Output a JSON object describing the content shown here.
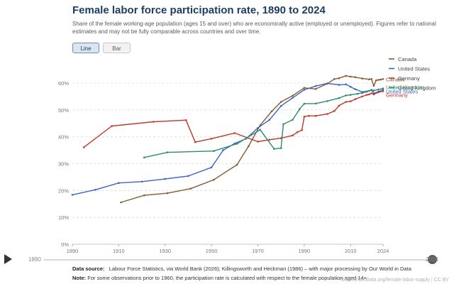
{
  "header": {
    "title": "Female labor force participation rate, 1890 to 2024",
    "subtitle": "Share of the female working-age population (ages 15 and over) who are economically active (employed or unemployed). Figures refer to national estimates and may not be fully comparable across countries and over time."
  },
  "controls": {
    "line_label": "Line",
    "bar_label": "Bar",
    "active": "Line"
  },
  "timeline": {
    "start_label": "1890",
    "end_label": "2024",
    "progress": 1.0
  },
  "footer": {
    "source_label": "Data source:",
    "source_text": "Labour Force Statistics, via World Bank (2026); Killingsworth and Heckman (1986) – with major processing by Our World in Data",
    "note_label": "Note:",
    "note_text": "For some observations prior to 1960, the participation rate is calculated with respect to the female population aged 14+.",
    "credit": "OurWorldInData.org/female-labor-supply | CC BY"
  },
  "chart_data": {
    "type": "line",
    "title": "Female labor force participation rate, 1890 to 2024",
    "xlim": [
      1890,
      2024
    ],
    "ylim": [
      0,
      60
    ],
    "x_ticks": [
      1890,
      1910,
      1930,
      1950,
      1970,
      1990,
      2010,
      2024
    ],
    "y_ticks": [
      0,
      10,
      20,
      30,
      40,
      50,
      60
    ],
    "y_tick_labels": [
      "0%",
      "10%",
      "20%",
      "30%",
      "40%",
      "50%",
      "60%"
    ],
    "grid": "horizontal-dashed",
    "legend": "top-right",
    "series": [
      {
        "name": "Canada",
        "color": "#8c5a2e",
        "points": [
          [
            1911,
            15.6
          ],
          [
            1921,
            18.2
          ],
          [
            1931,
            19.0
          ],
          [
            1941,
            20.7
          ],
          [
            1951,
            24.0
          ],
          [
            1961,
            29.6
          ],
          [
            1966,
            36.5
          ],
          [
            1971,
            44.3
          ],
          [
            1976,
            49.5
          ],
          [
            1980,
            53.0
          ],
          [
            1985,
            55.3
          ],
          [
            1990,
            58.2
          ],
          [
            1995,
            57.8
          ],
          [
            2000,
            59.8
          ],
          [
            2003,
            61.5
          ],
          [
            2005,
            61.8
          ],
          [
            2008,
            62.7
          ],
          [
            2010,
            62.4
          ],
          [
            2012,
            62.2
          ],
          [
            2015,
            61.7
          ],
          [
            2018,
            61.4
          ],
          [
            2019,
            61.5
          ],
          [
            2020,
            59.0
          ],
          [
            2021,
            61.0
          ],
          [
            2022,
            61.2
          ],
          [
            2023,
            61.3
          ],
          [
            2024,
            61.5
          ]
        ]
      },
      {
        "name": "United States",
        "color": "#3b65c0",
        "points": [
          [
            1890,
            18.4
          ],
          [
            1900,
            20.3
          ],
          [
            1910,
            22.8
          ],
          [
            1920,
            23.3
          ],
          [
            1930,
            24.3
          ],
          [
            1940,
            25.4
          ],
          [
            1950,
            28.6
          ],
          [
            1955,
            35.0
          ],
          [
            1960,
            37.5
          ],
          [
            1965,
            39.3
          ],
          [
            1970,
            43.3
          ],
          [
            1975,
            46.3
          ],
          [
            1980,
            51.5
          ],
          [
            1985,
            54.5
          ],
          [
            1990,
            57.5
          ],
          [
            1995,
            58.9
          ],
          [
            2000,
            59.9
          ],
          [
            2005,
            59.3
          ],
          [
            2008,
            59.5
          ],
          [
            2010,
            58.6
          ],
          [
            2012,
            57.7
          ],
          [
            2015,
            56.7
          ],
          [
            2018,
            57.1
          ],
          [
            2019,
            57.4
          ],
          [
            2020,
            56.2
          ],
          [
            2022,
            56.8
          ],
          [
            2024,
            57.5
          ]
        ]
      },
      {
        "name": "Germany",
        "color": "#c0392b",
        "points": [
          [
            1895,
            36.1
          ],
          [
            1907,
            44.0
          ],
          [
            1925,
            45.6
          ],
          [
            1939,
            46.2
          ],
          [
            1943,
            38.0
          ],
          [
            1950,
            39.3
          ],
          [
            1960,
            41.4
          ],
          [
            1970,
            38.2
          ],
          [
            1975,
            38.9
          ],
          [
            1980,
            39.5
          ],
          [
            1985,
            40.5
          ],
          [
            1987,
            41.7
          ],
          [
            1989,
            42.5
          ],
          [
            1990,
            47.5
          ],
          [
            1992,
            47.8
          ],
          [
            1995,
            47.8
          ],
          [
            2000,
            48.5
          ],
          [
            2003,
            49.6
          ],
          [
            2005,
            51.6
          ],
          [
            2008,
            53.0
          ],
          [
            2010,
            53.2
          ],
          [
            2012,
            54.0
          ],
          [
            2015,
            55.0
          ],
          [
            2017,
            55.6
          ],
          [
            2018,
            55.8
          ],
          [
            2019,
            56.2
          ],
          [
            2020,
            55.8
          ],
          [
            2022,
            56.6
          ],
          [
            2024,
            57.0
          ]
        ]
      },
      {
        "name": "United Kingdom",
        "color": "#2e8b6a",
        "points": [
          [
            1921,
            32.3
          ],
          [
            1931,
            34.2
          ],
          [
            1951,
            34.7
          ],
          [
            1961,
            37.4
          ],
          [
            1971,
            42.6
          ],
          [
            1977,
            35.5
          ],
          [
            1980,
            35.8
          ],
          [
            1981,
            44.7
          ],
          [
            1985,
            46.3
          ],
          [
            1988,
            50.3
          ],
          [
            1990,
            52.3
          ],
          [
            1995,
            52.4
          ],
          [
            2000,
            53.3
          ],
          [
            2005,
            54.4
          ],
          [
            2008,
            55.4
          ],
          [
            2010,
            55.6
          ],
          [
            2013,
            56.0
          ],
          [
            2015,
            56.3
          ],
          [
            2017,
            56.8
          ],
          [
            2019,
            57.5
          ],
          [
            2020,
            57.2
          ],
          [
            2022,
            57.6
          ],
          [
            2024,
            58.0
          ]
        ]
      }
    ]
  }
}
